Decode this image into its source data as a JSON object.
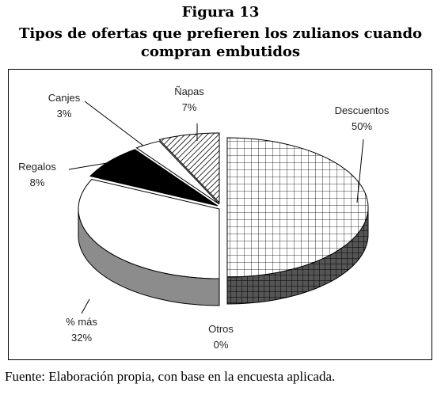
{
  "figure": {
    "number": "Figura 13",
    "title": "Tipos de ofertas que prefieren los zulianos cuando compran embutidos"
  },
  "source": "Fuente: Elaboración propia, con base en la encuesta aplicada.",
  "chart_data": {
    "type": "pie",
    "style": "3d-exploded",
    "title": "",
    "slices": [
      {
        "label": "Descuentos",
        "value": 50,
        "value_label": "50%",
        "pattern": "grid"
      },
      {
        "label": "Otros",
        "value": 0,
        "value_label": "0%",
        "pattern": "white"
      },
      {
        "label": "% más",
        "value": 32,
        "value_label": "32%",
        "pattern": "white-gray-side"
      },
      {
        "label": "Regalos",
        "value": 8,
        "value_label": "8%",
        "pattern": "solid-black"
      },
      {
        "label": "Canjes",
        "value": 3,
        "value_label": "3%",
        "pattern": "white"
      },
      {
        "label": "Ñapas",
        "value": 7,
        "value_label": "7%",
        "pattern": "diagonal-hatch"
      }
    ],
    "colors": {
      "outline": "#000000",
      "side_gray": "#8c8c8c",
      "black": "#000000",
      "white": "#ffffff"
    }
  }
}
